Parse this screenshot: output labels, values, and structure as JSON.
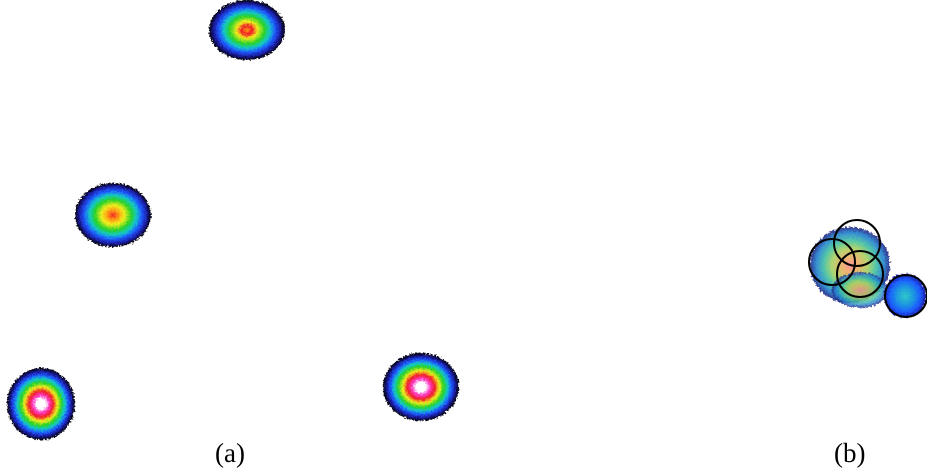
{
  "captions": {
    "panel_a": "(a)",
    "panel_b": "(b)"
  },
  "colormap": {
    "outer": "#000000",
    "dark_blue": "#1a1aa0",
    "blue": "#1e5aff",
    "cyan": "#14c8c8",
    "green": "#28d228",
    "yellow": "#f0ee1e",
    "orange": "#ff9614",
    "red": "#f01e28",
    "magenta": "#ff3cc8",
    "white": "#ffffff"
  },
  "outline_color": "#000000"
}
